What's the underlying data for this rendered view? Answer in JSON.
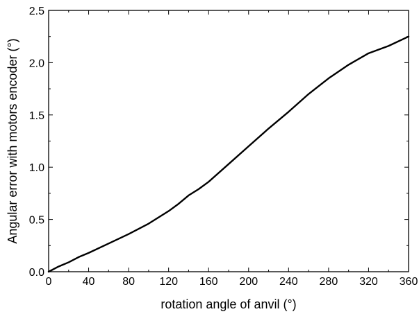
{
  "chart_data": {
    "type": "line",
    "title": "",
    "xlabel": "rotation angle of anvil (°)",
    "ylabel": "Angular error with motors encoder (°)",
    "xlim": [
      0,
      360
    ],
    "ylim": [
      0,
      2.5
    ],
    "xticks": [
      0,
      40,
      80,
      120,
      160,
      200,
      240,
      280,
      320,
      360
    ],
    "xtick_labels": [
      "0",
      "40",
      "80",
      "120",
      "160",
      "200",
      "240",
      "280",
      "320",
      "360"
    ],
    "yticks": [
      0,
      0.5,
      1.0,
      1.5,
      2.0,
      2.5
    ],
    "ytick_labels": [
      "0.0",
      "0.5",
      "1.0",
      "1.5",
      "2.0",
      "2.5"
    ],
    "grid": false,
    "legend": "none",
    "series": [
      {
        "color": "#000000",
        "x": [
          0,
          10,
          20,
          30,
          40,
          60,
          80,
          100,
          120,
          130,
          140,
          150,
          160,
          180,
          200,
          220,
          240,
          260,
          280,
          300,
          320,
          340,
          360
        ],
        "y": [
          0.0,
          0.05,
          0.09,
          0.14,
          0.18,
          0.27,
          0.36,
          0.46,
          0.58,
          0.65,
          0.73,
          0.79,
          0.86,
          1.03,
          1.2,
          1.37,
          1.53,
          1.7,
          1.85,
          1.98,
          2.09,
          2.16,
          2.25
        ]
      }
    ]
  }
}
